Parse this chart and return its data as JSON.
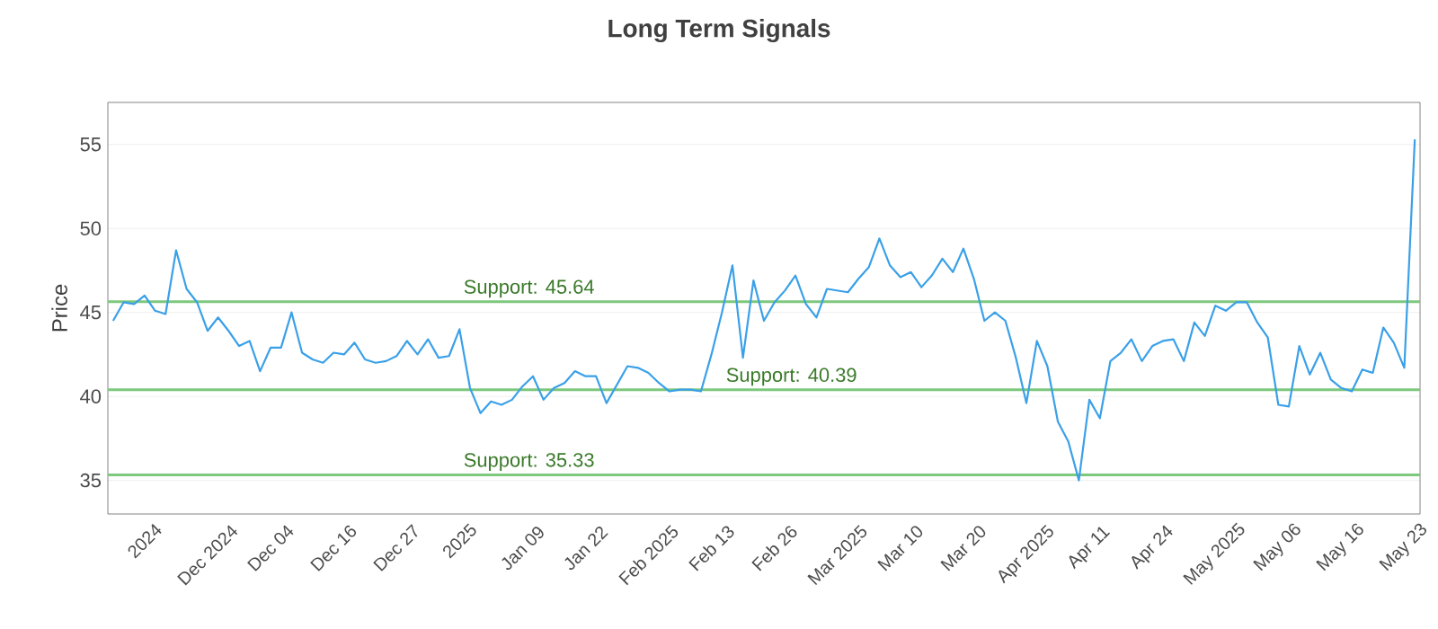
{
  "chart_data": {
    "type": "line",
    "title": "Long Term Signals",
    "ylabel": "Price",
    "categories": [
      null,
      null,
      null,
      "2024",
      null,
      null,
      null,
      null,
      null,
      "Dec 2024",
      null,
      null,
      null,
      null,
      null,
      "Dec 04",
      null,
      null,
      null,
      null,
      null,
      "Dec 16",
      null,
      null,
      null,
      null,
      null,
      "Dec 27",
      null,
      null,
      null,
      null,
      null,
      "2025",
      null,
      null,
      null,
      null,
      null,
      "Jan 09",
      null,
      null,
      null,
      null,
      null,
      "Jan 22",
      null,
      null,
      null,
      null,
      null,
      "Feb 2025",
      null,
      null,
      null,
      null,
      null,
      "Feb 13",
      null,
      null,
      null,
      null,
      null,
      "Feb 26",
      null,
      null,
      null,
      null,
      null,
      "Mar 2025",
      null,
      null,
      null,
      null,
      null,
      "Mar 10",
      null,
      null,
      null,
      null,
      null,
      "Mar 20",
      null,
      null,
      null,
      null,
      null,
      "Apr 2025",
      null,
      null,
      null,
      null,
      null,
      "Apr 11",
      null,
      null,
      null,
      null,
      null,
      "Apr 24",
      null,
      null,
      null,
      null,
      null,
      "May 2025",
      null,
      null,
      null,
      null,
      null,
      "May 06",
      null,
      null,
      null,
      null,
      null,
      "May 16",
      null,
      null,
      null,
      null,
      null,
      "May 23",
      null
    ],
    "series": [
      {
        "color": "#3aa0e8",
        "values": [
          44.5,
          45.6,
          45.5,
          46.0,
          45.1,
          44.9,
          48.7,
          46.4,
          45.6,
          43.9,
          44.7,
          43.9,
          43.0,
          43.3,
          41.5,
          42.9,
          42.9,
          45.0,
          42.6,
          42.2,
          42.0,
          42.6,
          42.5,
          43.2,
          42.2,
          42.0,
          42.1,
          42.4,
          43.3,
          42.5,
          43.4,
          42.3,
          42.4,
          44.0,
          40.5,
          39.0,
          39.7,
          39.5,
          39.8,
          40.6,
          41.2,
          39.8,
          40.5,
          40.8,
          41.5,
          41.2,
          41.2,
          39.6,
          40.7,
          41.8,
          41.7,
          41.4,
          40.8,
          40.3,
          40.4,
          40.4,
          40.3,
          42.5,
          45.0,
          47.8,
          42.3,
          46.9,
          44.5,
          45.6,
          46.3,
          47.2,
          45.5,
          44.7,
          46.4,
          46.3,
          46.2,
          47.0,
          47.7,
          49.4,
          47.8,
          47.1,
          47.4,
          46.5,
          47.2,
          48.2,
          47.4,
          48.8,
          47.0,
          44.5,
          45.0,
          44.5,
          42.3,
          39.6,
          43.3,
          41.8,
          38.5,
          37.3,
          35.0,
          39.8,
          38.7,
          42.1,
          42.6,
          43.4,
          42.1,
          43.0,
          43.3,
          43.4,
          42.1,
          44.4,
          43.6,
          45.4,
          45.1,
          45.6,
          45.6,
          44.4,
          43.5,
          39.5,
          39.4,
          43.0,
          41.3,
          42.6,
          41.0,
          40.5,
          40.3,
          41.6,
          41.4,
          44.1,
          43.2,
          41.7,
          55.3
        ]
      }
    ],
    "ylim": [
      33,
      57.5
    ],
    "yticks": [
      35,
      40,
      45,
      50,
      55
    ],
    "grid": "y",
    "marker": "none",
    "line_style": "solid",
    "ref_lines": [
      {
        "axis": "y",
        "value": 45.64,
        "label": "Support: 45.64",
        "color": "#7dc87d"
      },
      {
        "axis": "y",
        "value": 40.39,
        "label": "Support: 40.39",
        "color": "#7dc87d"
      },
      {
        "axis": "y",
        "value": 35.33,
        "label": "Support: 35.33",
        "color": "#7dc87d"
      }
    ]
  }
}
